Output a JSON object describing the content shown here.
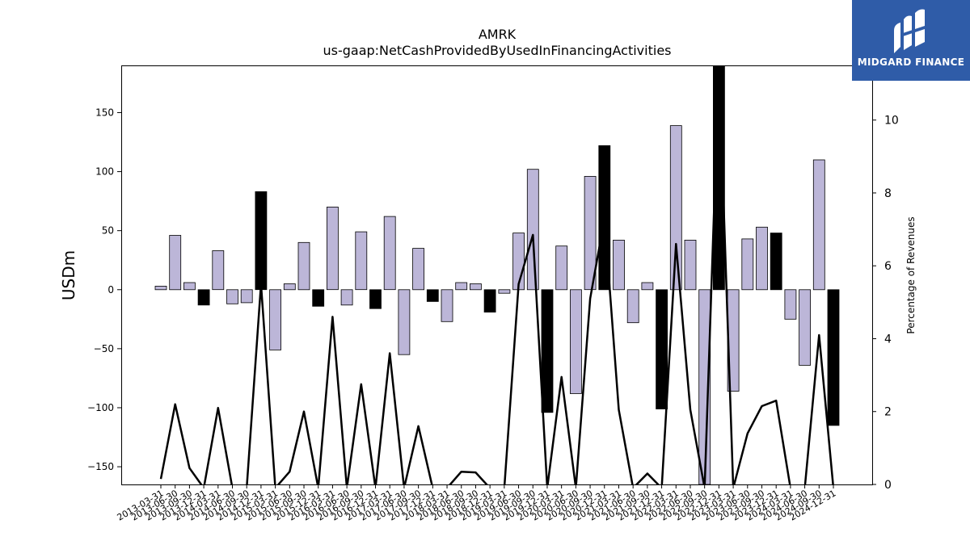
{
  "chart_data": {
    "type": "bar",
    "title": "AMRK",
    "subtitle": "us-gaap:NetCashProvidedByUsedInFinancingActivities",
    "ylabel": "USDm",
    "y2label": "Percentage of Revenues",
    "ylim": [
      -165,
      190
    ],
    "y2lim": [
      0,
      11.5
    ],
    "yticks": [
      -150,
      -100,
      -50,
      0,
      50,
      100,
      150
    ],
    "y2ticks": [
      0,
      2,
      4,
      6,
      8,
      10
    ],
    "categories": [
      "2013-03-31",
      "2013-06-30",
      "2013-09-30",
      "2013-12-31",
      "2014-03-31",
      "2014-06-30",
      "2014-09-30",
      "2014-12-31",
      "2015-03-31",
      "2015-06-30",
      "2015-09-30",
      "2015-12-31",
      "2016-03-31",
      "2016-06-30",
      "2016-09-30",
      "2016-12-31",
      "2017-03-31",
      "2017-06-30",
      "2017-09-30",
      "2017-12-31",
      "2018-03-31",
      "2018-06-30",
      "2018-09-30",
      "2018-12-31",
      "2019-03-31",
      "2019-06-30",
      "2019-09-30",
      "2019-12-31",
      "2020-03-31",
      "2020-06-30",
      "2020-09-30",
      "2020-12-31",
      "2021-03-31",
      "2021-06-30",
      "2021-09-30",
      "2021-12-31",
      "2022-03-31",
      "2022-06-30",
      "2022-09-30",
      "2022-12-31",
      "2023-03-31",
      "2023-06-30",
      "2023-09-30",
      "2023-12-31",
      "2024-03-31",
      "2024-06-30",
      "2024-09-30",
      "2024-12-31"
    ],
    "series": [
      {
        "kind": "bar",
        "values": [
          3,
          46,
          6,
          -13,
          33,
          -12,
          -11,
          83,
          -51,
          5,
          40,
          -14,
          70,
          -13,
          49,
          -16,
          62,
          -55,
          35,
          -10,
          -27,
          6,
          5,
          -19,
          -3,
          48,
          102,
          -104,
          37,
          -88,
          96,
          122,
          42,
          -28,
          6,
          -101,
          139,
          42,
          -165,
          190,
          -86,
          43,
          53,
          48,
          -25,
          -64,
          110,
          -115
        ],
        "colors": [
          "#bcb6d8",
          "#bcb6d8",
          "#bcb6d8",
          "#000000",
          "#bcb6d8",
          "#bcb6d8",
          "#bcb6d8",
          "#000000",
          "#bcb6d8",
          "#bcb6d8",
          "#bcb6d8",
          "#000000",
          "#bcb6d8",
          "#bcb6d8",
          "#bcb6d8",
          "#000000",
          "#bcb6d8",
          "#bcb6d8",
          "#bcb6d8",
          "#000000",
          "#bcb6d8",
          "#bcb6d8",
          "#bcb6d8",
          "#000000",
          "#bcb6d8",
          "#bcb6d8",
          "#bcb6d8",
          "#000000",
          "#bcb6d8",
          "#bcb6d8",
          "#bcb6d8",
          "#000000",
          "#bcb6d8",
          "#bcb6d8",
          "#bcb6d8",
          "#000000",
          "#bcb6d8",
          "#bcb6d8",
          "#bcb6d8",
          "#000000",
          "#bcb6d8",
          "#bcb6d8",
          "#bcb6d8",
          "#000000",
          "#bcb6d8",
          "#bcb6d8",
          "#bcb6d8",
          "#000000"
        ]
      },
      {
        "kind": "line",
        "axis": "right",
        "color": "#000000",
        "values": [
          0.15,
          2.2,
          0.45,
          -0.1,
          2.1,
          -0.1,
          -0.1,
          5.5,
          -0.1,
          0.35,
          2.0,
          -0.1,
          4.6,
          -0.1,
          2.75,
          -0.1,
          3.6,
          -0.1,
          1.6,
          -0.1,
          -0.1,
          0.35,
          0.33,
          -0.1,
          -0.1,
          5.5,
          6.85,
          -0.1,
          2.95,
          -0.1,
          5.1,
          7.3,
          2.05,
          -0.1,
          0.3,
          -0.1,
          6.6,
          2.05,
          -0.1,
          11.5,
          -0.1,
          1.4,
          2.15,
          2.3,
          -0.1,
          -0.1,
          4.1,
          -0.1
        ]
      }
    ],
    "grid": false,
    "legend": "none"
  },
  "brand": {
    "name": "MIDGARD FINANCE",
    "bg_color": "#2f5ca8",
    "icon": "midgard-logo-icon"
  }
}
